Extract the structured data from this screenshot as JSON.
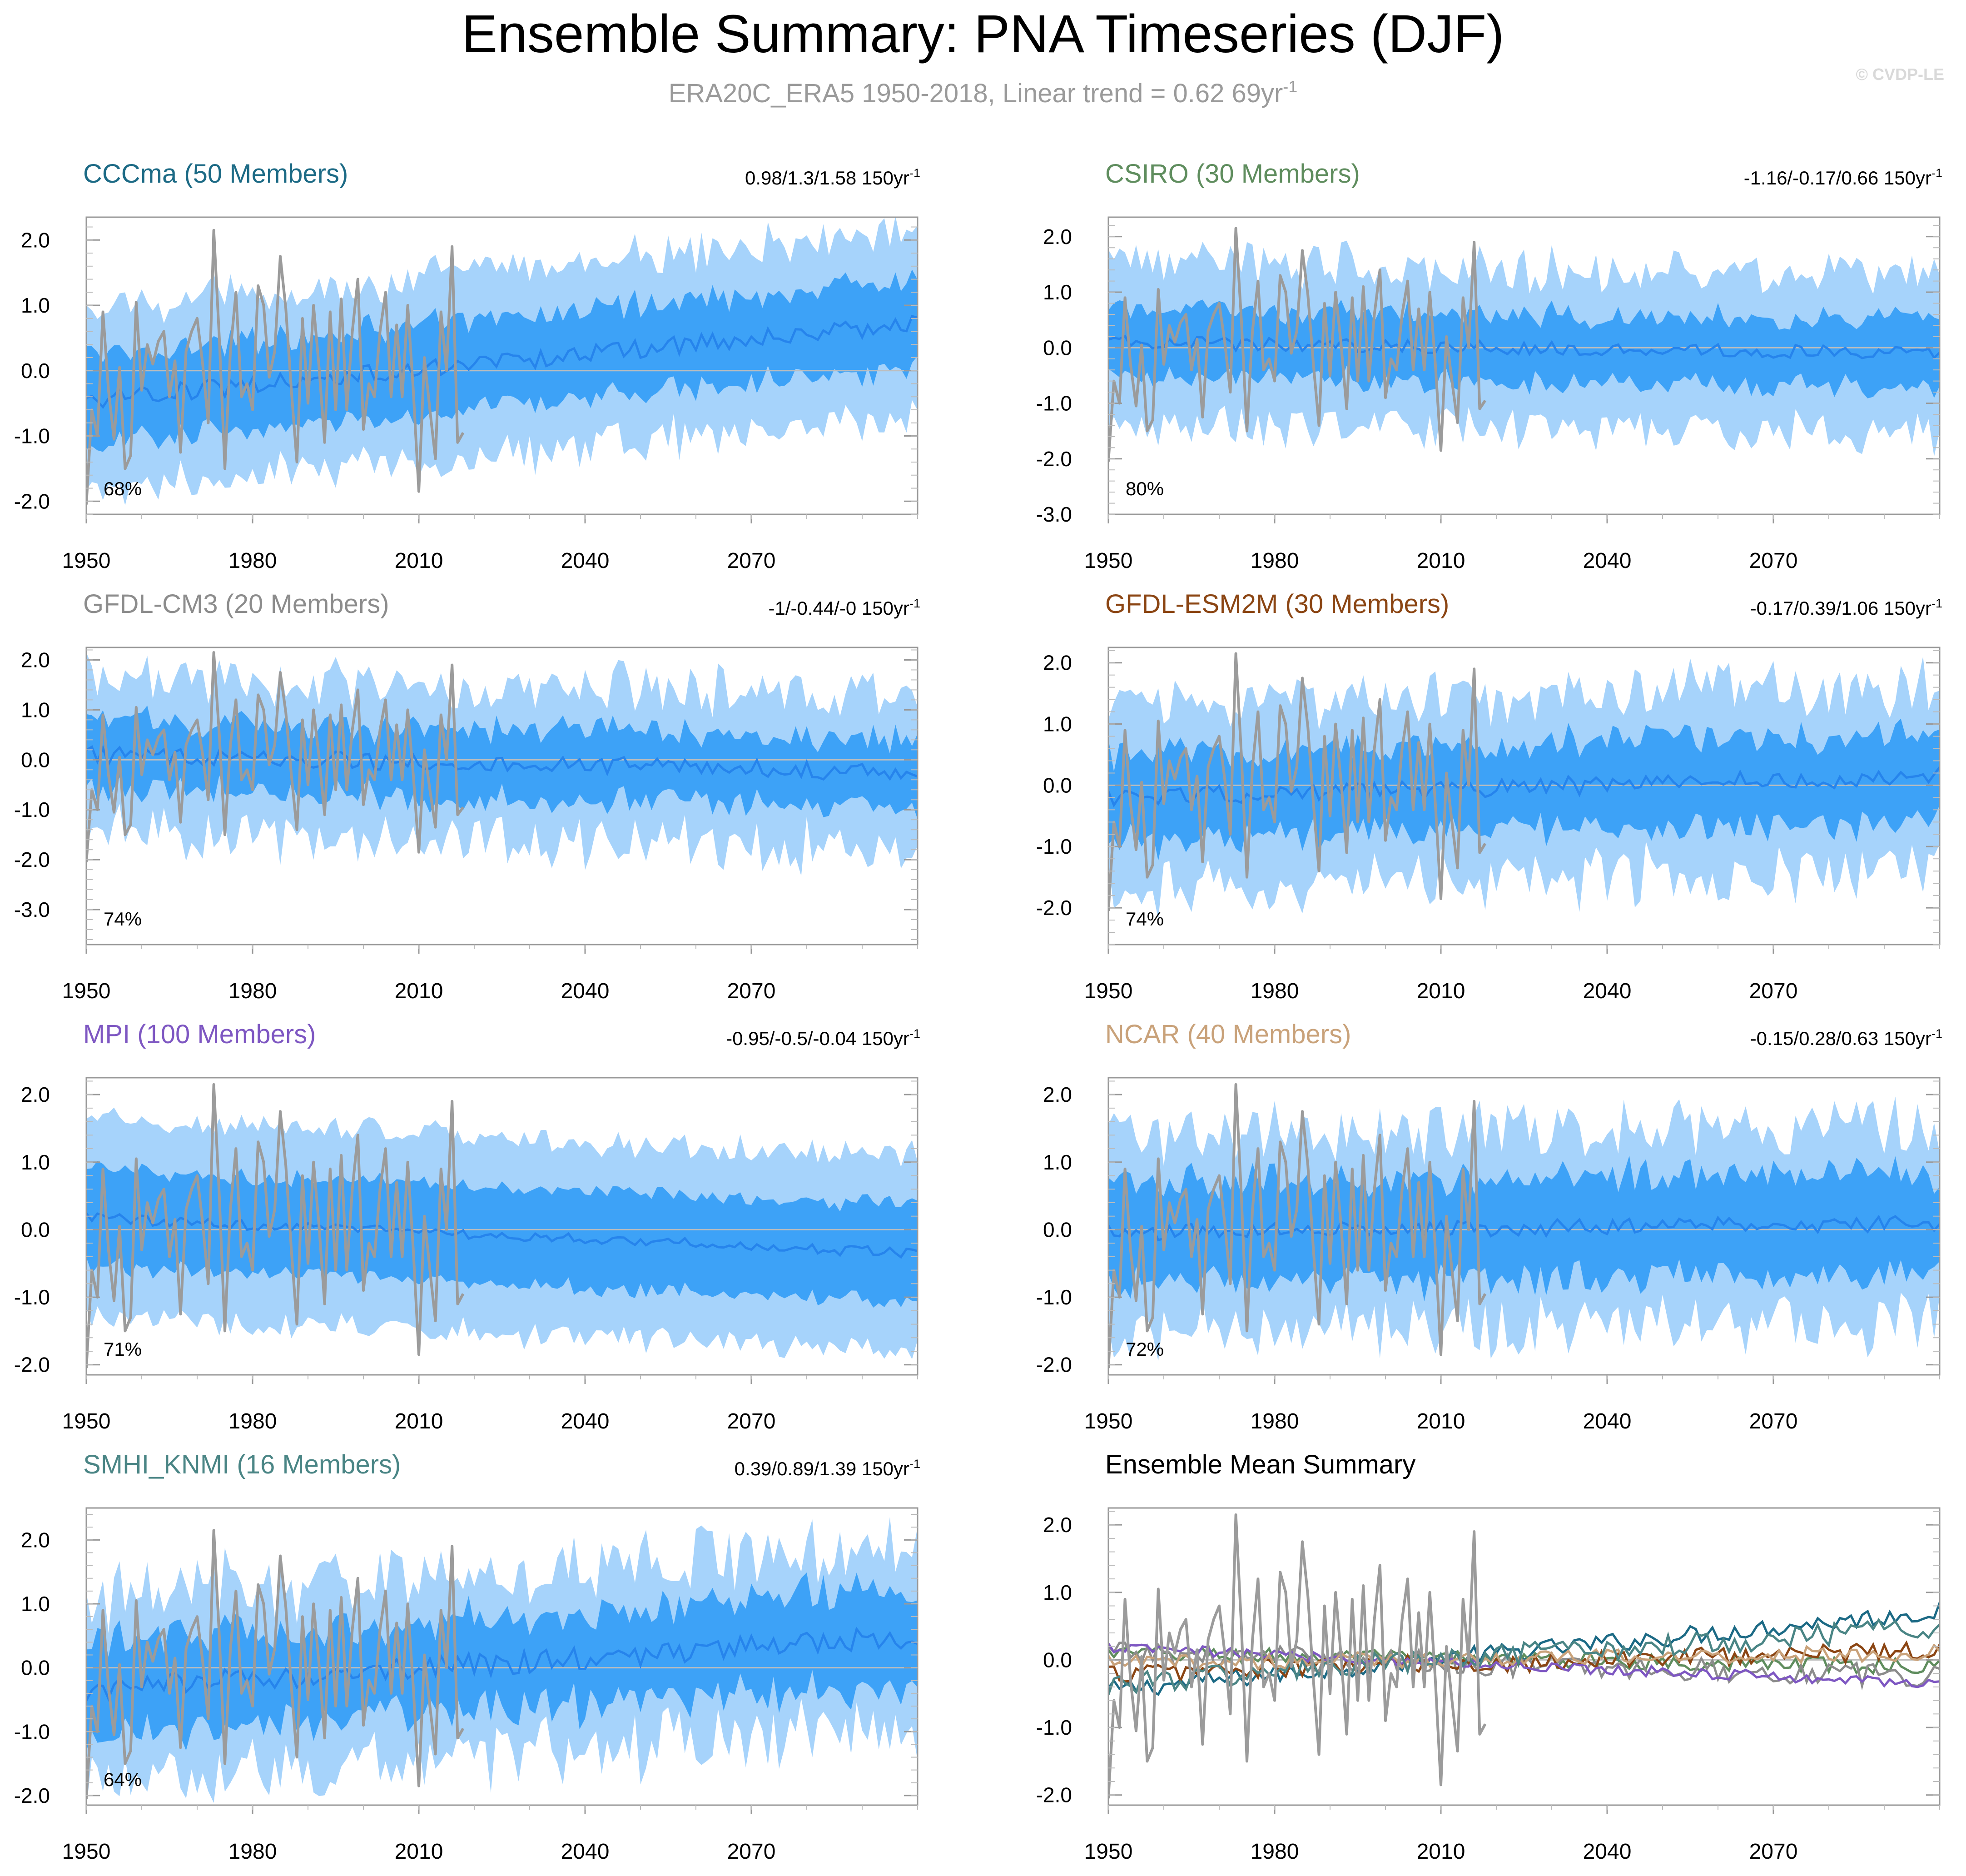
{
  "figure": {
    "title": "Ensemble Summary: PNA Timeseries (DJF)",
    "subtitle_main": "ERA20C_ERA5 1950-2018, Linear trend = 0.62 69yr",
    "subtitle_sup": "-1",
    "watermark": "© CVDP-LE"
  },
  "colors": {
    "band_outer": "#a6d3fb",
    "band_inner": "#3da2f7",
    "ens_mean_line": "#2684ec",
    "obs_line": "#9b9b9b",
    "zero_line": "#bdbdbd"
  },
  "chart_data": [
    {
      "type": "area",
      "panel_id": "cccma",
      "title": "CCCma (50 Members)",
      "title_color": "#1c6a85",
      "trend_text": "0.98/1.3/1.58 150yr",
      "trend_sup": "-1",
      "pct_label": "68%",
      "x_range": [
        1950,
        2100
      ],
      "xticks": [
        1950,
        1980,
        2010,
        2040,
        2070
      ],
      "ylim": [
        -2.2,
        2.35
      ],
      "yticks": [
        -2.0,
        -1.0,
        0.0,
        1.0,
        2.0
      ],
      "ytick_labels": [
        "-2.0",
        "-1.0",
        "0.0",
        "1.0",
        "2.0"
      ],
      "mean_trend": [
        -0.45,
        0.72
      ],
      "inner_width": 0.68,
      "outer_width": 1.4,
      "mean_noise": 0.14,
      "band_noise": 0.18
    },
    {
      "type": "area",
      "panel_id": "csiro",
      "title": "CSIRO (30 Members)",
      "title_color": "#5f8d5e",
      "trend_text": "-1.16/-0.17/0.66 150yr",
      "trend_sup": "-1",
      "pct_label": "80%",
      "x_range": [
        1950,
        2100
      ],
      "xticks": [
        1950,
        1980,
        2010,
        2040,
        2070
      ],
      "ylim": [
        -3.0,
        2.35
      ],
      "yticks": [
        -3.0,
        -2.0,
        -1.0,
        0.0,
        1.0,
        2.0
      ],
      "ytick_labels": [
        "-3.0",
        "-2.0",
        "-1.0",
        "0.0",
        "1.0",
        "2.0"
      ],
      "mean_trend": [
        0.1,
        -0.1
      ],
      "inner_width": 0.6,
      "outer_width": 1.45,
      "mean_noise": 0.12,
      "band_noise": 0.25
    },
    {
      "type": "area",
      "panel_id": "gfdl-cm3",
      "title": "GFDL-CM3 (20 Members)",
      "title_color": "#8c8c8c",
      "trend_text": "-1/-0.44/-0 150yr",
      "trend_sup": "-1",
      "pct_label": "74%",
      "x_range": [
        1950,
        2100
      ],
      "xticks": [
        1950,
        1980,
        2010,
        2040,
        2070
      ],
      "ylim": [
        -3.7,
        2.25
      ],
      "yticks": [
        -3.0,
        -2.0,
        -1.0,
        0.0,
        1.0,
        2.0
      ],
      "ytick_labels": [
        "-3.0",
        "-2.0",
        "-1.0",
        "0.0",
        "1.0",
        "2.0"
      ],
      "mean_trend": [
        0.1,
        -0.25
      ],
      "inner_width": 0.7,
      "outer_width": 1.55,
      "mean_noise": 0.18,
      "band_noise": 0.3
    },
    {
      "type": "area",
      "panel_id": "gfdl-esm2m",
      "title": "GFDL-ESM2M (30 Members)",
      "title_color": "#8b4513",
      "trend_text": "-0.17/0.39/1.06 150yr",
      "trend_sup": "-1",
      "pct_label": "74%",
      "x_range": [
        1950,
        2100
      ],
      "xticks": [
        1950,
        1980,
        2010,
        2040,
        2070
      ],
      "ylim": [
        -2.6,
        2.25
      ],
      "yticks": [
        -2.0,
        -1.0,
        0.0,
        1.0,
        2.0
      ],
      "ytick_labels": [
        "-2.0",
        "-1.0",
        "0.0",
        "1.0",
        "2.0"
      ],
      "mean_trend": [
        -0.2,
        0.15
      ],
      "inner_width": 0.72,
      "outer_width": 1.5,
      "mean_noise": 0.15,
      "band_noise": 0.3
    },
    {
      "type": "area",
      "panel_id": "mpi",
      "title": "MPI (100 Members)",
      "title_color": "#7e57c2",
      "trend_text": "-0.95/-0.5/-0.04 150yr",
      "trend_sup": "-1",
      "pct_label": "71%",
      "x_range": [
        1950,
        2100
      ],
      "xticks": [
        1950,
        1980,
        2010,
        2040,
        2070
      ],
      "ylim": [
        -2.15,
        2.25
      ],
      "yticks": [
        -2.0,
        -1.0,
        0.0,
        1.0,
        2.0
      ],
      "ytick_labels": [
        "-2.0",
        "-1.0",
        "0.0",
        "1.0",
        "2.0"
      ],
      "mean_trend": [
        0.18,
        -0.35
      ],
      "inner_width": 0.72,
      "outer_width": 1.45,
      "mean_noise": 0.08,
      "band_noise": 0.12
    },
    {
      "type": "area",
      "panel_id": "ncar",
      "title": "NCAR (40 Members)",
      "title_color": "#c9a27a",
      "trend_text": "-0.15/0.28/0.63 150yr",
      "trend_sup": "-1",
      "pct_label": "72%",
      "x_range": [
        1950,
        2100
      ],
      "xticks": [
        1950,
        1980,
        2010,
        2040,
        2070
      ],
      "ylim": [
        -2.15,
        2.25
      ],
      "yticks": [
        -2.0,
        -1.0,
        0.0,
        1.0,
        2.0
      ],
      "ytick_labels": [
        "-2.0",
        "-1.0",
        "0.0",
        "1.0",
        "2.0"
      ],
      "mean_trend": [
        -0.05,
        0.1
      ],
      "inner_width": 0.75,
      "outer_width": 1.45,
      "mean_noise": 0.12,
      "band_noise": 0.28
    },
    {
      "type": "area",
      "panel_id": "smhi-knmi",
      "title": "SMHI_KNMI (16 Members)",
      "title_color": "#4a8585",
      "trend_text": "0.39/0.89/1.39 150yr",
      "trend_sup": "-1",
      "pct_label": "64%",
      "x_range": [
        1950,
        2100
      ],
      "xticks": [
        1950,
        1980,
        2010,
        2040,
        2070
      ],
      "ylim": [
        -2.15,
        2.5
      ],
      "yticks": [
        -2.0,
        -1.0,
        0.0,
        1.0,
        2.0
      ],
      "ytick_labels": [
        "-2.0",
        "-1.0",
        "0.0",
        "1.0",
        "2.0"
      ],
      "mean_trend": [
        -0.35,
        0.5
      ],
      "inner_width": 0.72,
      "outer_width": 1.45,
      "mean_noise": 0.18,
      "band_noise": 0.32
    },
    {
      "type": "line",
      "panel_id": "ensemble-mean",
      "title": "Ensemble Mean Summary",
      "title_color": "#000000",
      "x_range": [
        1950,
        2100
      ],
      "xticks": [
        1950,
        1980,
        2010,
        2040,
        2070
      ],
      "ylim": [
        -2.15,
        2.25
      ],
      "yticks": [
        -2.0,
        -1.0,
        0.0,
        1.0,
        2.0
      ],
      "ytick_labels": [
        "-2.0",
        "-1.0",
        "0.0",
        "1.0",
        "2.0"
      ],
      "series": [
        {
          "name": "CCCma",
          "color": "#1c6a85",
          "trend": [
            -0.45,
            0.72
          ],
          "noise": 0.14
        },
        {
          "name": "CSIRO",
          "color": "#5f8d5e",
          "trend": [
            0.1,
            -0.1
          ],
          "noise": 0.12
        },
        {
          "name": "GFDL-CM3",
          "color": "#8c8c8c",
          "trend": [
            0.1,
            -0.25
          ],
          "noise": 0.18
        },
        {
          "name": "GFDL-ESM2M",
          "color": "#8b4513",
          "trend": [
            -0.2,
            0.15
          ],
          "noise": 0.15
        },
        {
          "name": "MPI",
          "color": "#7e57c2",
          "trend": [
            0.18,
            -0.35
          ],
          "noise": 0.08
        },
        {
          "name": "NCAR",
          "color": "#c9a27a",
          "trend": [
            -0.05,
            0.1
          ],
          "noise": 0.12
        },
        {
          "name": "SMHI_KNMI",
          "color": "#4a8585",
          "trend": [
            -0.35,
            0.5
          ],
          "noise": 0.18
        }
      ]
    }
  ],
  "observations": {
    "name": "ERA20C_ERA5",
    "years": [
      1950,
      1951,
      1952,
      1953,
      1954,
      1955,
      1956,
      1957,
      1958,
      1959,
      1960,
      1961,
      1962,
      1963,
      1964,
      1965,
      1966,
      1967,
      1968,
      1969,
      1970,
      1971,
      1972,
      1973,
      1974,
      1975,
      1976,
      1977,
      1978,
      1979,
      1980,
      1981,
      1982,
      1983,
      1984,
      1985,
      1986,
      1987,
      1988,
      1989,
      1990,
      1991,
      1992,
      1993,
      1994,
      1995,
      1996,
      1997,
      1998,
      1999,
      2000,
      2001,
      2002,
      2003,
      2004,
      2005,
      2006,
      2007,
      2008,
      2009,
      2010,
      2011,
      2012,
      2013,
      2014,
      2015,
      2016,
      2017,
      2018
    ],
    "values": [
      -2.05,
      -0.6,
      -1.0,
      0.9,
      -0.3,
      -1.05,
      0.05,
      -1.5,
      -1.3,
      1.05,
      -0.3,
      0.4,
      0.1,
      0.45,
      0.6,
      -0.4,
      0.15,
      -1.25,
      0.3,
      0.6,
      0.8,
      0.1,
      -0.8,
      2.15,
      0.5,
      -1.5,
      0.3,
      1.2,
      -0.4,
      -0.2,
      -0.6,
      1.3,
      1.0,
      -0.1,
      0.3,
      1.75,
      0.95,
      -0.3,
      -1.4,
      0.8,
      -0.5,
      1.0,
      0.05,
      -1.1,
      0.9,
      -0.6,
      1.1,
      -0.6,
      0.6,
      1.4,
      -0.9,
      -0.2,
      -0.4,
      0.6,
      1.2,
      -0.4,
      0.7,
      -0.4,
      1.0,
      -0.3,
      -1.85,
      0.2,
      -0.6,
      -1.35,
      0.9,
      0.0,
      1.9,
      -1.1,
      -0.95
    ]
  }
}
